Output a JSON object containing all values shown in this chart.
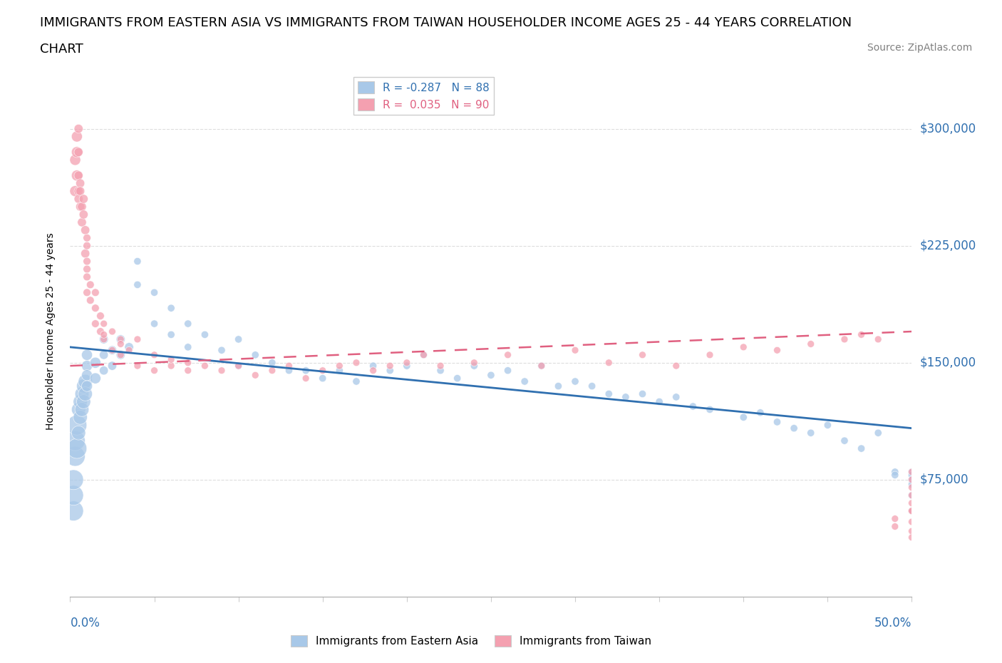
{
  "title_line1": "IMMIGRANTS FROM EASTERN ASIA VS IMMIGRANTS FROM TAIWAN HOUSEHOLDER INCOME AGES 25 - 44 YEARS CORRELATION",
  "title_line2": "CHART",
  "source": "Source: ZipAtlas.com",
  "ylabel": "Householder Income Ages 25 - 44 years",
  "y_tick_labels": [
    "$75,000",
    "$150,000",
    "$225,000",
    "$300,000"
  ],
  "y_tick_values": [
    75000,
    150000,
    225000,
    300000
  ],
  "x_range": [
    0.0,
    0.5
  ],
  "y_range": [
    0,
    340000
  ],
  "blue_color": "#a8c8e8",
  "pink_color": "#f4a0b0",
  "blue_trend_color": "#3070b0",
  "pink_trend_color": "#e06080",
  "title_fontsize": 13,
  "source_fontsize": 10,
  "axis_label_fontsize": 10,
  "legend_fontsize": 11,
  "blue_R": -0.287,
  "blue_N": 88,
  "pink_R": 0.035,
  "pink_N": 90,
  "blue_trend_x0": 0.0,
  "blue_trend_y0": 160000,
  "blue_trend_x1": 0.5,
  "blue_trend_y1": 108000,
  "pink_trend_x0": 0.0,
  "pink_trend_y0": 148000,
  "pink_trend_x1": 0.5,
  "pink_trend_y1": 170000,
  "blue_scatter_x": [
    0.002,
    0.002,
    0.002,
    0.003,
    0.003,
    0.004,
    0.004,
    0.005,
    0.005,
    0.006,
    0.006,
    0.007,
    0.007,
    0.008,
    0.008,
    0.009,
    0.009,
    0.01,
    0.01,
    0.01,
    0.01,
    0.015,
    0.015,
    0.02,
    0.02,
    0.02,
    0.025,
    0.025,
    0.03,
    0.03,
    0.035,
    0.04,
    0.04,
    0.05,
    0.05,
    0.06,
    0.06,
    0.07,
    0.07,
    0.08,
    0.09,
    0.1,
    0.1,
    0.11,
    0.12,
    0.13,
    0.14,
    0.15,
    0.16,
    0.17,
    0.18,
    0.19,
    0.2,
    0.21,
    0.22,
    0.23,
    0.24,
    0.25,
    0.26,
    0.27,
    0.28,
    0.29,
    0.3,
    0.31,
    0.32,
    0.33,
    0.34,
    0.35,
    0.36,
    0.37,
    0.38,
    0.4,
    0.41,
    0.42,
    0.43,
    0.44,
    0.45,
    0.46,
    0.47,
    0.48,
    0.49,
    0.49,
    0.5,
    0.5,
    0.5,
    0.5,
    0.5,
    0.5
  ],
  "blue_scatter_y": [
    55000,
    65000,
    75000,
    90000,
    100000,
    110000,
    95000,
    120000,
    105000,
    125000,
    115000,
    130000,
    120000,
    135000,
    125000,
    138000,
    130000,
    148000,
    142000,
    135000,
    155000,
    150000,
    140000,
    155000,
    145000,
    165000,
    158000,
    148000,
    165000,
    155000,
    160000,
    200000,
    215000,
    195000,
    175000,
    185000,
    168000,
    175000,
    160000,
    168000,
    158000,
    165000,
    148000,
    155000,
    150000,
    145000,
    145000,
    140000,
    145000,
    138000,
    148000,
    145000,
    148000,
    155000,
    145000,
    140000,
    148000,
    142000,
    145000,
    138000,
    148000,
    135000,
    138000,
    135000,
    130000,
    128000,
    130000,
    125000,
    128000,
    122000,
    120000,
    115000,
    118000,
    112000,
    108000,
    105000,
    110000,
    100000,
    95000,
    105000,
    80000,
    78000,
    80000,
    78000,
    75000,
    72000,
    65000,
    55000
  ],
  "pink_scatter_x": [
    0.003,
    0.003,
    0.004,
    0.004,
    0.004,
    0.005,
    0.005,
    0.005,
    0.005,
    0.005,
    0.006,
    0.006,
    0.006,
    0.007,
    0.007,
    0.008,
    0.008,
    0.009,
    0.009,
    0.01,
    0.01,
    0.01,
    0.01,
    0.01,
    0.01,
    0.012,
    0.012,
    0.015,
    0.015,
    0.015,
    0.018,
    0.018,
    0.02,
    0.02,
    0.02,
    0.025,
    0.025,
    0.03,
    0.03,
    0.03,
    0.035,
    0.04,
    0.04,
    0.05,
    0.05,
    0.06,
    0.06,
    0.07,
    0.07,
    0.08,
    0.09,
    0.1,
    0.11,
    0.12,
    0.13,
    0.14,
    0.15,
    0.16,
    0.17,
    0.18,
    0.19,
    0.2,
    0.21,
    0.22,
    0.24,
    0.26,
    0.28,
    0.3,
    0.32,
    0.34,
    0.36,
    0.38,
    0.4,
    0.42,
    0.44,
    0.46,
    0.47,
    0.48,
    0.49,
    0.49,
    0.5,
    0.5,
    0.5,
    0.5,
    0.5,
    0.5,
    0.5,
    0.5,
    0.5,
    0.5
  ],
  "pink_scatter_y": [
    260000,
    280000,
    295000,
    270000,
    285000,
    300000,
    285000,
    270000,
    260000,
    255000,
    265000,
    250000,
    260000,
    240000,
    250000,
    245000,
    255000,
    220000,
    235000,
    210000,
    215000,
    225000,
    205000,
    195000,
    230000,
    200000,
    190000,
    185000,
    195000,
    175000,
    180000,
    170000,
    175000,
    165000,
    168000,
    170000,
    158000,
    165000,
    155000,
    162000,
    158000,
    165000,
    148000,
    155000,
    145000,
    148000,
    152000,
    145000,
    150000,
    148000,
    145000,
    148000,
    142000,
    145000,
    148000,
    140000,
    145000,
    148000,
    150000,
    145000,
    148000,
    150000,
    155000,
    148000,
    150000,
    155000,
    148000,
    158000,
    150000,
    155000,
    148000,
    155000,
    160000,
    158000,
    162000,
    165000,
    168000,
    165000,
    50000,
    45000,
    60000,
    55000,
    65000,
    70000,
    75000,
    80000,
    55000,
    48000,
    42000,
    38000
  ]
}
